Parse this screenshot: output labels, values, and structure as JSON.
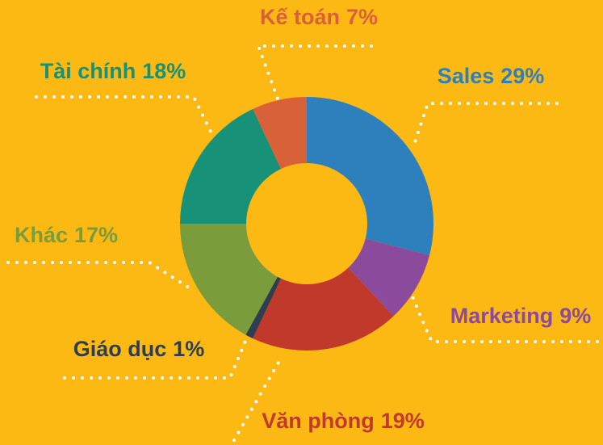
{
  "chart_data": {
    "type": "donut",
    "categories": [
      "Sales",
      "Marketing",
      "Văn phòng",
      "Giáo dục",
      "Khác",
      "Tài chính",
      "Kế toán"
    ],
    "values": [
      29,
      9,
      19,
      1,
      17,
      18,
      7
    ],
    "value_labels": [
      "29%",
      "9%",
      "19%",
      "1%",
      "17%",
      "18%",
      "7%"
    ],
    "colors": [
      "#2e80bd",
      "#8b4a9c",
      "#c0392b",
      "#2c3e50",
      "#7a9c3a",
      "#179178",
      "#d8613a"
    ]
  }
}
